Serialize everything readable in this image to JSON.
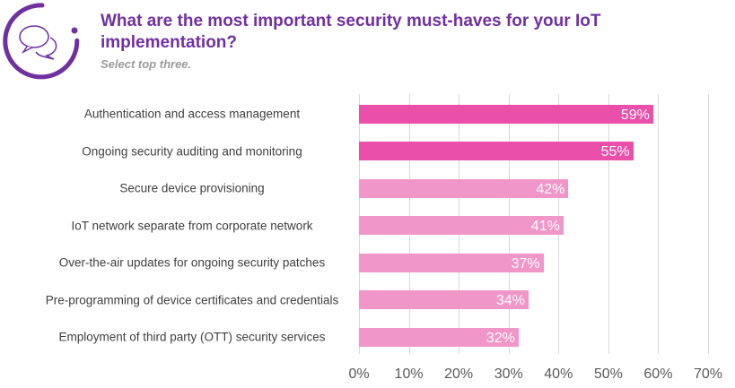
{
  "header": {
    "title": "What are the most important security must-haves for your IoT implementation?",
    "subtitle": "Select top three.",
    "logo_icon": "chat-bubbles-icon"
  },
  "colors": {
    "title": "#7030A0",
    "bar_top": "#EA4FA9",
    "bar_rest": "#F196C9"
  },
  "chart_data": {
    "type": "bar",
    "orientation": "horizontal",
    "categories": [
      "Authentication and access management",
      "Ongoing security auditing and monitoring",
      "Secure device provisioning",
      "IoT network separate from corporate network",
      "Over-the-air updates for ongoing security patches",
      "Pre-programming of device certificates and credentials",
      "Employment of third party (OTT) security services"
    ],
    "values": [
      59,
      55,
      42,
      41,
      37,
      34,
      32
    ],
    "data_labels": [
      "59%",
      "55%",
      "42%",
      "41%",
      "37%",
      "34%",
      "32%"
    ],
    "highlighted": [
      true,
      true,
      false,
      false,
      false,
      false,
      false
    ],
    "xlim": [
      0,
      70
    ],
    "xticks": [
      "0%",
      "10%",
      "20%",
      "30%",
      "40%",
      "50%",
      "60%",
      "70%"
    ],
    "grid": true
  }
}
